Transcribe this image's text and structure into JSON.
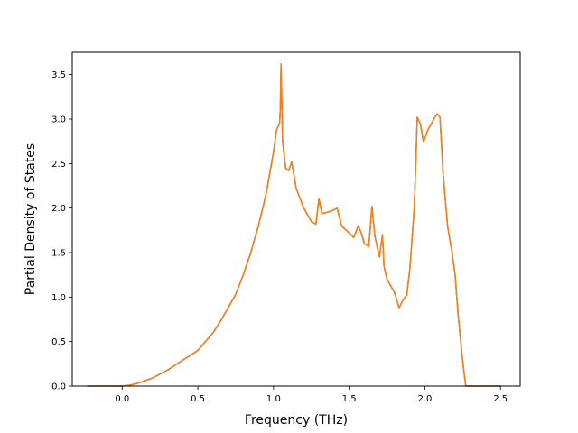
{
  "chart_data": {
    "type": "line",
    "title": "",
    "xlabel": "Frequency (THz)",
    "ylabel": "Partial Density of States",
    "xlim": [
      -0.33,
      2.63
    ],
    "ylim": [
      0.0,
      3.75
    ],
    "grid": false,
    "legend": "none",
    "x_ticks": [
      0.0,
      0.5,
      1.0,
      1.5,
      2.0,
      2.5
    ],
    "x_tick_labels": [
      "0.0",
      "0.5",
      "1.0",
      "1.5",
      "2.0",
      "2.5"
    ],
    "y_ticks": [
      0.0,
      0.5,
      1.0,
      1.5,
      2.0,
      2.5,
      3.0,
      3.5
    ],
    "y_tick_labels": [
      "0.0",
      "0.5",
      "1.0",
      "1.5",
      "2.0",
      "2.5",
      "3.0",
      "3.5"
    ],
    "series": [
      {
        "color": "#1f77b4",
        "x": [
          -0.23,
          0.0,
          0.05,
          0.1,
          0.2,
          0.3,
          0.4,
          0.5,
          0.55,
          0.6,
          0.65,
          0.7,
          0.75,
          0.8,
          0.85,
          0.9,
          0.95,
          1.0,
          1.02,
          1.04,
          1.045,
          1.05,
          1.06,
          1.08,
          1.1,
          1.12,
          1.15,
          1.2,
          1.25,
          1.28,
          1.3,
          1.32,
          1.35,
          1.4,
          1.42,
          1.45,
          1.5,
          1.53,
          1.56,
          1.58,
          1.6,
          1.63,
          1.65,
          1.67,
          1.7,
          1.72,
          1.73,
          1.75,
          1.8,
          1.83,
          1.85,
          1.88,
          1.9,
          1.93,
          1.95,
          1.97,
          1.99,
          2.0,
          2.02,
          2.05,
          2.08,
          2.1,
          2.12,
          2.15,
          2.18,
          2.2,
          2.22,
          2.25,
          2.27,
          2.3,
          2.5
        ],
        "y": [
          0.0,
          0.0,
          0.01,
          0.03,
          0.09,
          0.18,
          0.29,
          0.4,
          0.5,
          0.6,
          0.73,
          0.88,
          1.03,
          1.25,
          1.5,
          1.8,
          2.15,
          2.63,
          2.88,
          2.95,
          3.12,
          3.62,
          2.75,
          2.45,
          2.42,
          2.52,
          2.22,
          2.0,
          1.85,
          1.82,
          2.1,
          1.94,
          1.95,
          1.98,
          2.0,
          1.8,
          1.72,
          1.67,
          1.8,
          1.72,
          1.6,
          1.57,
          2.02,
          1.68,
          1.45,
          1.7,
          1.35,
          1.2,
          1.05,
          0.88,
          0.95,
          1.02,
          1.3,
          2.0,
          3.02,
          2.95,
          2.75,
          2.78,
          2.88,
          2.97,
          3.06,
          3.02,
          2.4,
          1.8,
          1.5,
          1.25,
          0.8,
          0.28,
          0.0,
          0.0,
          0.0
        ]
      },
      {
        "color": "#ff7f0e",
        "x": [
          -0.23,
          0.0,
          0.05,
          0.1,
          0.2,
          0.3,
          0.4,
          0.5,
          0.55,
          0.6,
          0.65,
          0.7,
          0.75,
          0.8,
          0.85,
          0.9,
          0.95,
          1.0,
          1.02,
          1.04,
          1.045,
          1.05,
          1.06,
          1.08,
          1.1,
          1.12,
          1.15,
          1.2,
          1.25,
          1.28,
          1.3,
          1.32,
          1.35,
          1.4,
          1.42,
          1.45,
          1.5,
          1.53,
          1.56,
          1.58,
          1.6,
          1.63,
          1.65,
          1.67,
          1.7,
          1.72,
          1.73,
          1.75,
          1.8,
          1.83,
          1.85,
          1.88,
          1.9,
          1.93,
          1.95,
          1.97,
          1.99,
          2.0,
          2.02,
          2.05,
          2.08,
          2.1,
          2.12,
          2.15,
          2.18,
          2.2,
          2.22,
          2.25,
          2.27,
          2.3,
          2.5
        ],
        "y": [
          0.0,
          0.0,
          0.01,
          0.03,
          0.09,
          0.18,
          0.29,
          0.4,
          0.5,
          0.6,
          0.73,
          0.88,
          1.03,
          1.25,
          1.5,
          1.8,
          2.15,
          2.63,
          2.88,
          2.95,
          3.12,
          3.62,
          2.75,
          2.45,
          2.42,
          2.52,
          2.22,
          2.0,
          1.85,
          1.82,
          2.1,
          1.94,
          1.95,
          1.98,
          2.0,
          1.8,
          1.72,
          1.67,
          1.8,
          1.72,
          1.6,
          1.57,
          2.02,
          1.68,
          1.45,
          1.7,
          1.35,
          1.2,
          1.05,
          0.88,
          0.95,
          1.02,
          1.3,
          2.0,
          3.02,
          2.95,
          2.75,
          2.78,
          2.88,
          2.97,
          3.06,
          3.02,
          2.4,
          1.8,
          1.5,
          1.25,
          0.8,
          0.28,
          0.0,
          0.0,
          0.0
        ]
      }
    ]
  }
}
